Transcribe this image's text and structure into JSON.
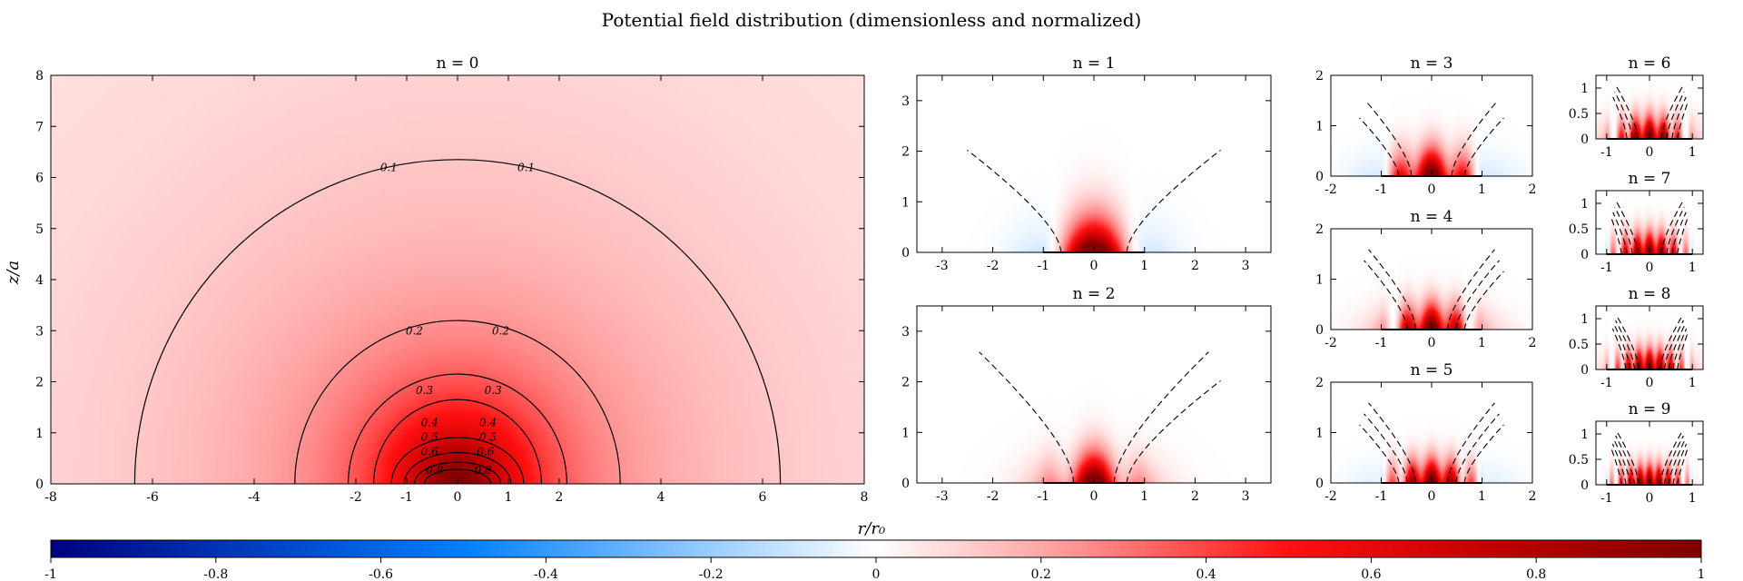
{
  "figure": {
    "title": "Potential field distribution (dimensionless and normalized)",
    "xlabel": "r/r₀",
    "ylabel": "z/a"
  },
  "colors": {
    "negative": "#00007f",
    "mid_negative": "#0080ff",
    "zero": "#ffffff",
    "mid_positive": "#ff1010",
    "positive": "#800000",
    "frame": "#000000"
  },
  "chart_data": [
    {
      "type": "heatmap",
      "title": "n = 0",
      "xlim": [
        -8,
        8
      ],
      "ylim": [
        0,
        8
      ],
      "xticks": [
        -8,
        -6,
        -4,
        -2,
        -1,
        0,
        1,
        2,
        4,
        6,
        8
      ],
      "yticks": [
        0,
        1,
        2,
        3,
        4,
        5,
        6,
        7,
        8
      ],
      "contour_levels": [
        0.1,
        0.2,
        0.3,
        0.4,
        0.5,
        0.6,
        0.7,
        0.8
      ],
      "contour_labels": [
        "0.1",
        "0.1",
        "0.2",
        "0.2",
        "0.3",
        "0.3",
        "0.4",
        "0.4",
        "0.5",
        "0.5",
        "0.6",
        "0.6",
        "0.8",
        "0.8"
      ]
    },
    {
      "type": "heatmap",
      "title": "n = 1",
      "xlim": [
        -3.5,
        3.5
      ],
      "ylim": [
        0,
        3.5
      ],
      "xticks": [
        -3,
        -2,
        -1,
        0,
        1,
        2,
        3
      ],
      "yticks": [
        0,
        1,
        2,
        3
      ]
    },
    {
      "type": "heatmap",
      "title": "n = 2",
      "xlim": [
        -3.5,
        3.5
      ],
      "ylim": [
        0,
        3.5
      ],
      "xticks": [
        -3,
        -2,
        -1,
        0,
        1,
        2,
        3
      ],
      "yticks": [
        0,
        1,
        2,
        3
      ]
    },
    {
      "type": "heatmap",
      "title": "n = 3",
      "xlim": [
        -2,
        2
      ],
      "ylim": [
        0,
        2
      ],
      "xticks": [
        -2,
        -1,
        0,
        1,
        2
      ],
      "yticks": [
        0,
        1,
        2
      ]
    },
    {
      "type": "heatmap",
      "title": "n = 4",
      "xlim": [
        -2,
        2
      ],
      "ylim": [
        0,
        2
      ],
      "xticks": [
        -2,
        -1,
        0,
        1,
        2
      ],
      "yticks": [
        0,
        1,
        2
      ]
    },
    {
      "type": "heatmap",
      "title": "n = 5",
      "xlim": [
        -2,
        2
      ],
      "ylim": [
        0,
        2
      ],
      "xticks": [
        -2,
        -1,
        0,
        1,
        2
      ],
      "yticks": [
        0,
        1,
        2
      ]
    },
    {
      "type": "heatmap",
      "title": "n = 6",
      "xlim": [
        -1.25,
        1.25
      ],
      "ylim": [
        0,
        1.25
      ],
      "xticks": [
        -1,
        0,
        1
      ],
      "yticks": [
        0,
        0.5,
        1
      ]
    },
    {
      "type": "heatmap",
      "title": "n = 7",
      "xlim": [
        -1.25,
        1.25
      ],
      "ylim": [
        0,
        1.25
      ],
      "xticks": [
        -1,
        0,
        1
      ],
      "yticks": [
        0,
        0.5,
        1
      ]
    },
    {
      "type": "heatmap",
      "title": "n = 8",
      "xlim": [
        -1.25,
        1.25
      ],
      "ylim": [
        0,
        1.25
      ],
      "xticks": [
        -1,
        0,
        1
      ],
      "yticks": [
        0,
        0.5,
        1
      ]
    },
    {
      "type": "heatmap",
      "title": "n = 9",
      "xlim": [
        -1.25,
        1.25
      ],
      "ylim": [
        0,
        1.25
      ],
      "xticks": [
        -1,
        0,
        1
      ],
      "yticks": [
        0,
        0.5,
        1
      ]
    }
  ],
  "colorbar": {
    "range": [
      -1,
      1
    ],
    "ticks": [
      "-1",
      "-0.8",
      "-0.6",
      "-0.4",
      "-0.2",
      "0",
      "0.2",
      "0.4",
      "0.6",
      "0.8",
      "1"
    ]
  }
}
